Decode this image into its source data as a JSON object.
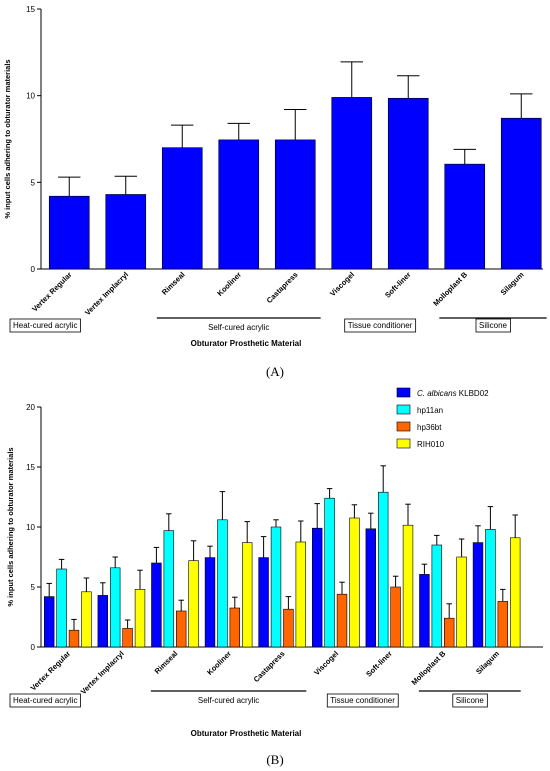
{
  "panel_labels": {
    "a": "(A)",
    "b": "(B)"
  },
  "chart_data": [
    {
      "id": "A",
      "type": "bar",
      "ylabel": "% input cells adhering to obturator materials",
      "xlabel": "Obturator Prosthetic Material",
      "ylim": [
        0,
        15
      ],
      "yticks": [
        0,
        5,
        10,
        15
      ],
      "categories": [
        "Vertex Regular",
        "Vertex Implacryl",
        "Rimseal",
        "Kooliner",
        "Castapress",
        "Viscogel",
        "Soft-liner",
        "Molloplast B",
        "Silagum"
      ],
      "series": [
        {
          "color": "#0000ff",
          "values": [
            4.2,
            4.3,
            7.0,
            7.45,
            7.45,
            9.9,
            9.85,
            6.05,
            8.7
          ],
          "errors": [
            1.1,
            1.05,
            1.3,
            0.95,
            1.75,
            2.05,
            1.3,
            0.85,
            1.4
          ]
        }
      ],
      "groups": [
        {
          "label": "Heat-cured acrylic",
          "boxed": true,
          "bar": false,
          "from": 0,
          "to": 1
        },
        {
          "label": "Self-cured acrylic",
          "boxed": false,
          "bar": true,
          "from": 2,
          "to": 4
        },
        {
          "label": "Tissue conditioner",
          "boxed": true,
          "bar": false,
          "from": 5,
          "to": 6
        },
        {
          "label": "Silicone",
          "boxed": true,
          "bar": true,
          "from": 7,
          "to": 8
        }
      ]
    },
    {
      "id": "B",
      "type": "bar",
      "ylabel": "% input cells adhering to obturator materials",
      "xlabel": "Obturator Prosthetic Material",
      "ylim": [
        0,
        20
      ],
      "yticks": [
        0,
        5,
        10,
        15,
        20
      ],
      "categories": [
        "Vertex Regular",
        "Vertex Implacryl",
        "Rimseal",
        "Kooliner",
        "Castapress",
        "Viscogel",
        "Soft-liner",
        "Molloplast B",
        "Silagum"
      ],
      "legend_position": "top-right",
      "series": [
        {
          "name_italic": "C. albicans",
          "name_rest": " KLBD02",
          "color": "#0000ff",
          "values": [
            4.2,
            4.3,
            7.0,
            7.45,
            7.45,
            9.9,
            9.85,
            6.05,
            8.7
          ],
          "errors": [
            1.1,
            1.05,
            1.3,
            0.95,
            1.75,
            2.05,
            1.3,
            0.85,
            1.4
          ]
        },
        {
          "name": "hp11an",
          "color": "#00ffff",
          "values": [
            6.5,
            6.6,
            9.7,
            10.6,
            10.0,
            12.4,
            12.9,
            8.5,
            9.8
          ],
          "errors": [
            0.8,
            0.9,
            1.4,
            2.35,
            0.6,
            0.8,
            2.2,
            0.8,
            1.9
          ]
        },
        {
          "name": "hp36bt",
          "color": "#ff6600",
          "values": [
            1.4,
            1.55,
            3.0,
            3.25,
            3.15,
            4.4,
            5.0,
            2.4,
            3.8
          ],
          "errors": [
            0.9,
            0.7,
            0.9,
            0.9,
            1.05,
            1.0,
            0.9,
            1.2,
            1.0
          ]
        },
        {
          "name": "RIH010",
          "color": "#ffff00",
          "values": [
            4.6,
            4.8,
            7.2,
            8.7,
            8.75,
            10.75,
            10.15,
            7.5,
            9.1
          ],
          "errors": [
            1.15,
            1.6,
            1.65,
            1.75,
            1.75,
            1.1,
            1.75,
            1.5,
            1.9
          ]
        }
      ],
      "groups": [
        {
          "label": "Heat-cured acrylic",
          "boxed": true,
          "bar": false,
          "from": 0,
          "to": 1
        },
        {
          "label": "Self-cured acrylic",
          "boxed": false,
          "bar": true,
          "from": 2,
          "to": 4
        },
        {
          "label": "Tissue conditioner",
          "boxed": true,
          "bar": false,
          "from": 5,
          "to": 6
        },
        {
          "label": "Silicone",
          "boxed": true,
          "bar": true,
          "from": 7,
          "to": 8
        }
      ]
    }
  ]
}
